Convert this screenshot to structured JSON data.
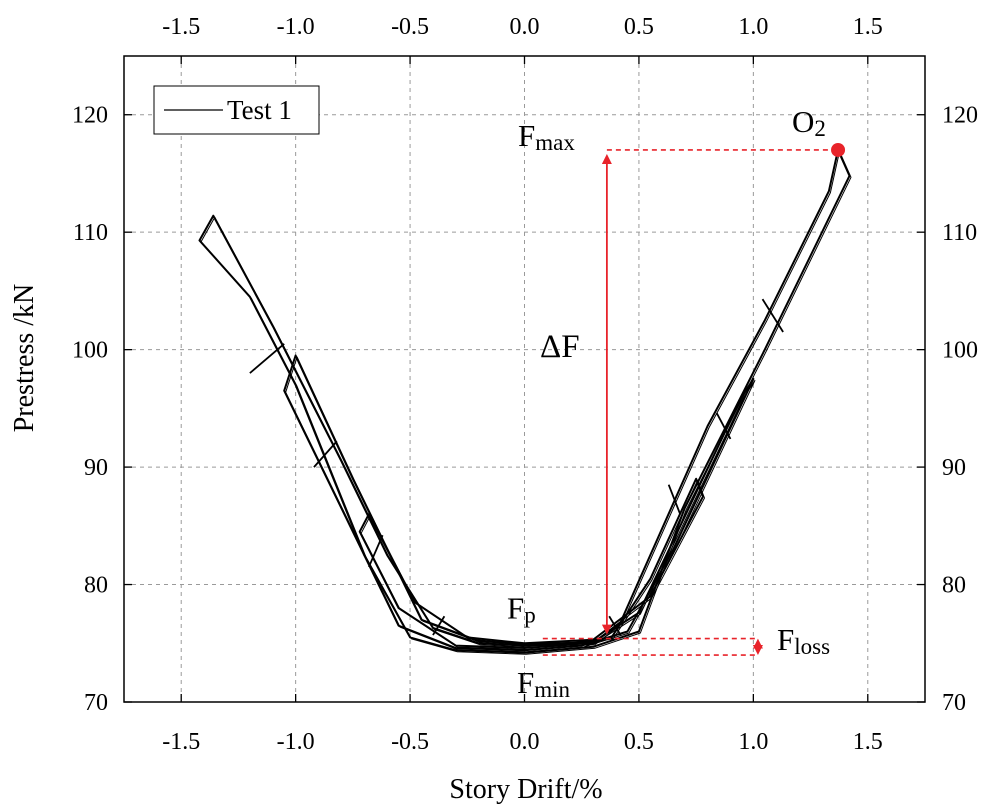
{
  "chart_data": {
    "type": "line",
    "title": "",
    "xlabel": "Story Drift/%",
    "ylabel": "Prestress /kN",
    "xlim": [
      -1.75,
      1.75
    ],
    "ylim": [
      70,
      125
    ],
    "x_ticks": [
      -1.5,
      -1.0,
      -0.5,
      0.0,
      0.5,
      1.0,
      1.5
    ],
    "x_tick_labels": [
      "-1.5",
      "-1.0",
      "-0.5",
      "0.0",
      "0.5",
      "1.0",
      "1.5"
    ],
    "y_ticks": [
      70,
      80,
      90,
      100,
      110,
      120
    ],
    "y_tick_labels": [
      "70",
      "80",
      "90",
      "100",
      "110",
      "120"
    ],
    "grid": true,
    "legend": {
      "position": "top-left",
      "entries": [
        "Test 1"
      ]
    },
    "series": [
      {
        "name": "Test 1",
        "color": "#000000",
        "loops": [
          {
            "points": [
              [
                0.0,
                74.8
              ],
              [
                0.3,
                75.0
              ],
              [
                0.42,
                76.8
              ],
              [
                0.8,
                93.5
              ],
              [
                1.05,
                102.5
              ],
              [
                1.33,
                113.5
              ],
              [
                1.37,
                117.0
              ],
              [
                1.42,
                114.8
              ],
              [
                1.05,
                100.0
              ],
              [
                0.7,
                86.5
              ],
              [
                0.5,
                76.0
              ],
              [
                0.3,
                74.7
              ],
              [
                0.0,
                74.2
              ],
              [
                -0.3,
                74.4
              ],
              [
                -0.5,
                75.5
              ],
              [
                -0.7,
                82.5
              ],
              [
                -1.0,
                97.0
              ],
              [
                -1.2,
                104.5
              ],
              [
                -1.42,
                109.3
              ],
              [
                -1.36,
                111.4
              ],
              [
                -1.1,
                102.0
              ],
              [
                -0.8,
                90.5
              ],
              [
                -0.6,
                82.5
              ],
              [
                -0.4,
                76.3
              ],
              [
                -0.2,
                75.0
              ],
              [
                0.0,
                74.8
              ]
            ]
          },
          {
            "points": [
              [
                0.0,
                74.9
              ],
              [
                0.3,
                75.1
              ],
              [
                0.5,
                77.6
              ],
              [
                0.95,
                96.0
              ],
              [
                1.0,
                97.5
              ],
              [
                0.65,
                83.0
              ],
              [
                0.45,
                76.0
              ],
              [
                0.25,
                74.8
              ],
              [
                0.0,
                74.4
              ],
              [
                -0.3,
                74.6
              ],
              [
                -0.55,
                76.5
              ],
              [
                -0.85,
                88.5
              ],
              [
                -1.05,
                96.5
              ],
              [
                -1.0,
                99.5
              ],
              [
                -0.75,
                89.0
              ],
              [
                -0.45,
                77.0
              ],
              [
                -0.2,
                75.2
              ],
              [
                0.0,
                74.9
              ]
            ]
          },
          {
            "points": [
              [
                0.0,
                75.0
              ],
              [
                0.3,
                75.3
              ],
              [
                0.55,
                79.0
              ],
              [
                0.78,
                87.5
              ],
              [
                0.75,
                89.0
              ],
              [
                0.55,
                80.5
              ],
              [
                0.38,
                75.5
              ],
              [
                0.15,
                74.8
              ],
              [
                0.0,
                74.6
              ],
              [
                -0.3,
                74.8
              ],
              [
                -0.55,
                78.0
              ],
              [
                -0.72,
                84.5
              ],
              [
                -0.68,
                86.0
              ],
              [
                -0.48,
                78.5
              ],
              [
                -0.25,
                75.5
              ],
              [
                0.0,
                75.0
              ]
            ]
          }
        ],
        "braces": [
          [
            [
              -1.2,
              98.0
            ],
            [
              -1.05,
              100.5
            ]
          ],
          [
            [
              -0.92,
              90.0
            ],
            [
              -0.82,
              92.2
            ]
          ],
          [
            [
              -0.68,
              81.5
            ],
            [
              -0.62,
              84.2
            ]
          ],
          [
            [
              -0.4,
              75.7
            ],
            [
              -0.35,
              77.3
            ]
          ],
          [
            [
              0.42,
              75.7
            ],
            [
              0.37,
              77.3
            ]
          ],
          [
            [
              0.68,
              86.0
            ],
            [
              0.63,
              88.5
            ]
          ],
          [
            [
              0.9,
              92.4
            ],
            [
              0.84,
              94.6
            ]
          ],
          [
            [
              1.13,
              101.5
            ],
            [
              1.04,
              104.3
            ]
          ]
        ]
      }
    ],
    "annotations": {
      "O2": {
        "label": "O",
        "sub": "2",
        "x": 1.37,
        "y": 117.0
      },
      "Fmax": {
        "label": "F",
        "sub": "max",
        "y": 117.0
      },
      "deltaF": {
        "label": "ΔF"
      },
      "Fp": {
        "label": "F",
        "sub": "p",
        "y": 75.4
      },
      "Floss": {
        "label": "F",
        "sub": "loss"
      },
      "Fmin": {
        "label": "F",
        "sub": "min",
        "y": 74.0
      },
      "arrow_x": 0.36,
      "loss_x": 1.02,
      "ref_line_x_start": 0.08,
      "color": "#e8232a"
    }
  }
}
